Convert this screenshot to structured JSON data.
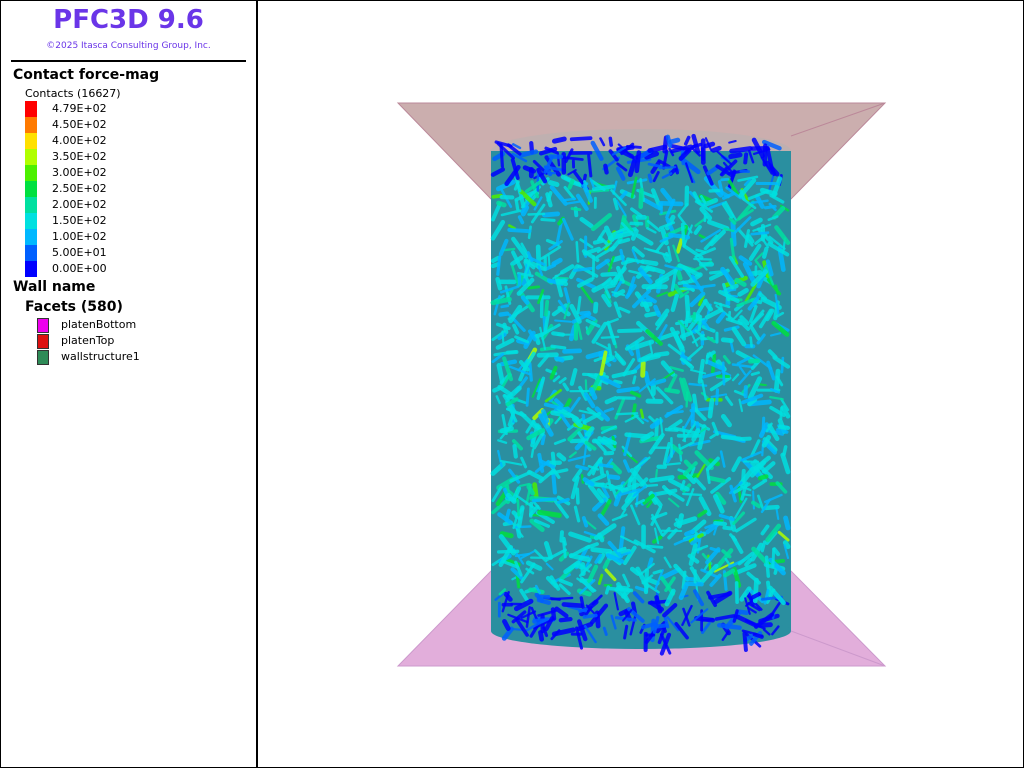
{
  "header": {
    "title": "PFC3D 9.6",
    "copyright": "©2025 Itasca Consulting Group, Inc."
  },
  "contact_legend": {
    "title": "Contact force-mag",
    "subtitle": "Contacts (16627)",
    "items": [
      {
        "label": "4.79E+02",
        "color": "#ff0000"
      },
      {
        "label": "4.50E+02",
        "color": "#ff7a00"
      },
      {
        "label": "4.00E+02",
        "color": "#ffe000"
      },
      {
        "label": "3.50E+02",
        "color": "#b0ff00"
      },
      {
        "label": "3.00E+02",
        "color": "#4cf000"
      },
      {
        "label": "2.50E+02",
        "color": "#00e040"
      },
      {
        "label": "2.00E+02",
        "color": "#00e0a0"
      },
      {
        "label": "1.50E+02",
        "color": "#00e0e0"
      },
      {
        "label": "1.00E+02",
        "color": "#00b8ff"
      },
      {
        "label": "5.00E+01",
        "color": "#0060ff"
      },
      {
        "label": "0.00E+00",
        "color": "#0000ff"
      }
    ]
  },
  "wall_legend": {
    "title": "Wall name",
    "subtitle": "Facets (580)",
    "items": [
      {
        "label": "platenBottom",
        "color": "#ee00ee"
      },
      {
        "label": "platenTop",
        "color": "#dd1010"
      },
      {
        "label": "wallstructure1",
        "color": "#2e8b57"
      }
    ]
  }
}
